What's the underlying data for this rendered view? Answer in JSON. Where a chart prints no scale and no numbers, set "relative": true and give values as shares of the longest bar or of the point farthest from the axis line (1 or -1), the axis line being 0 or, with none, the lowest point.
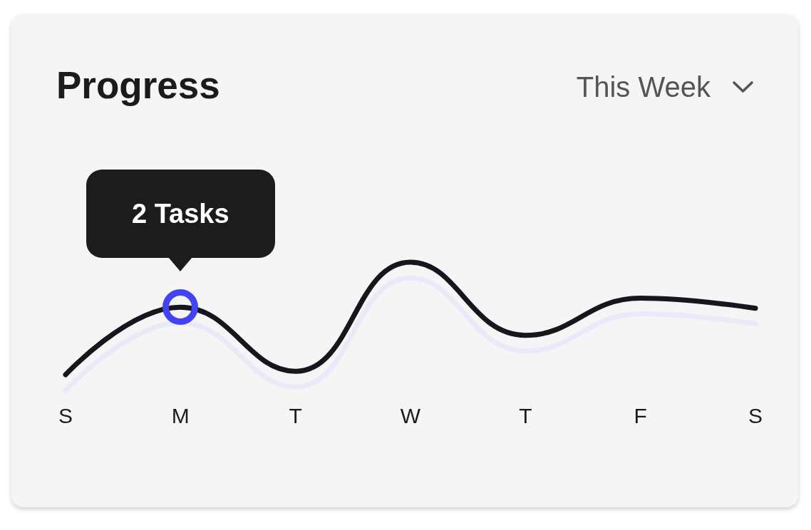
{
  "chart_data": {
    "type": "line",
    "title": "Progress",
    "categories": [
      "S",
      "M",
      "T",
      "W",
      "T",
      "F",
      "S"
    ],
    "values": [
      0,
      0.6,
      0.03,
      1,
      0.35,
      0.68,
      0.59
    ],
    "color": "#12121f",
    "relative": true,
    "marker": "none",
    "annotations": [
      "This Week",
      {
        "text": "2 Tasks",
        "x": "M",
        "y": 0.6
      }
    ]
  }
}
